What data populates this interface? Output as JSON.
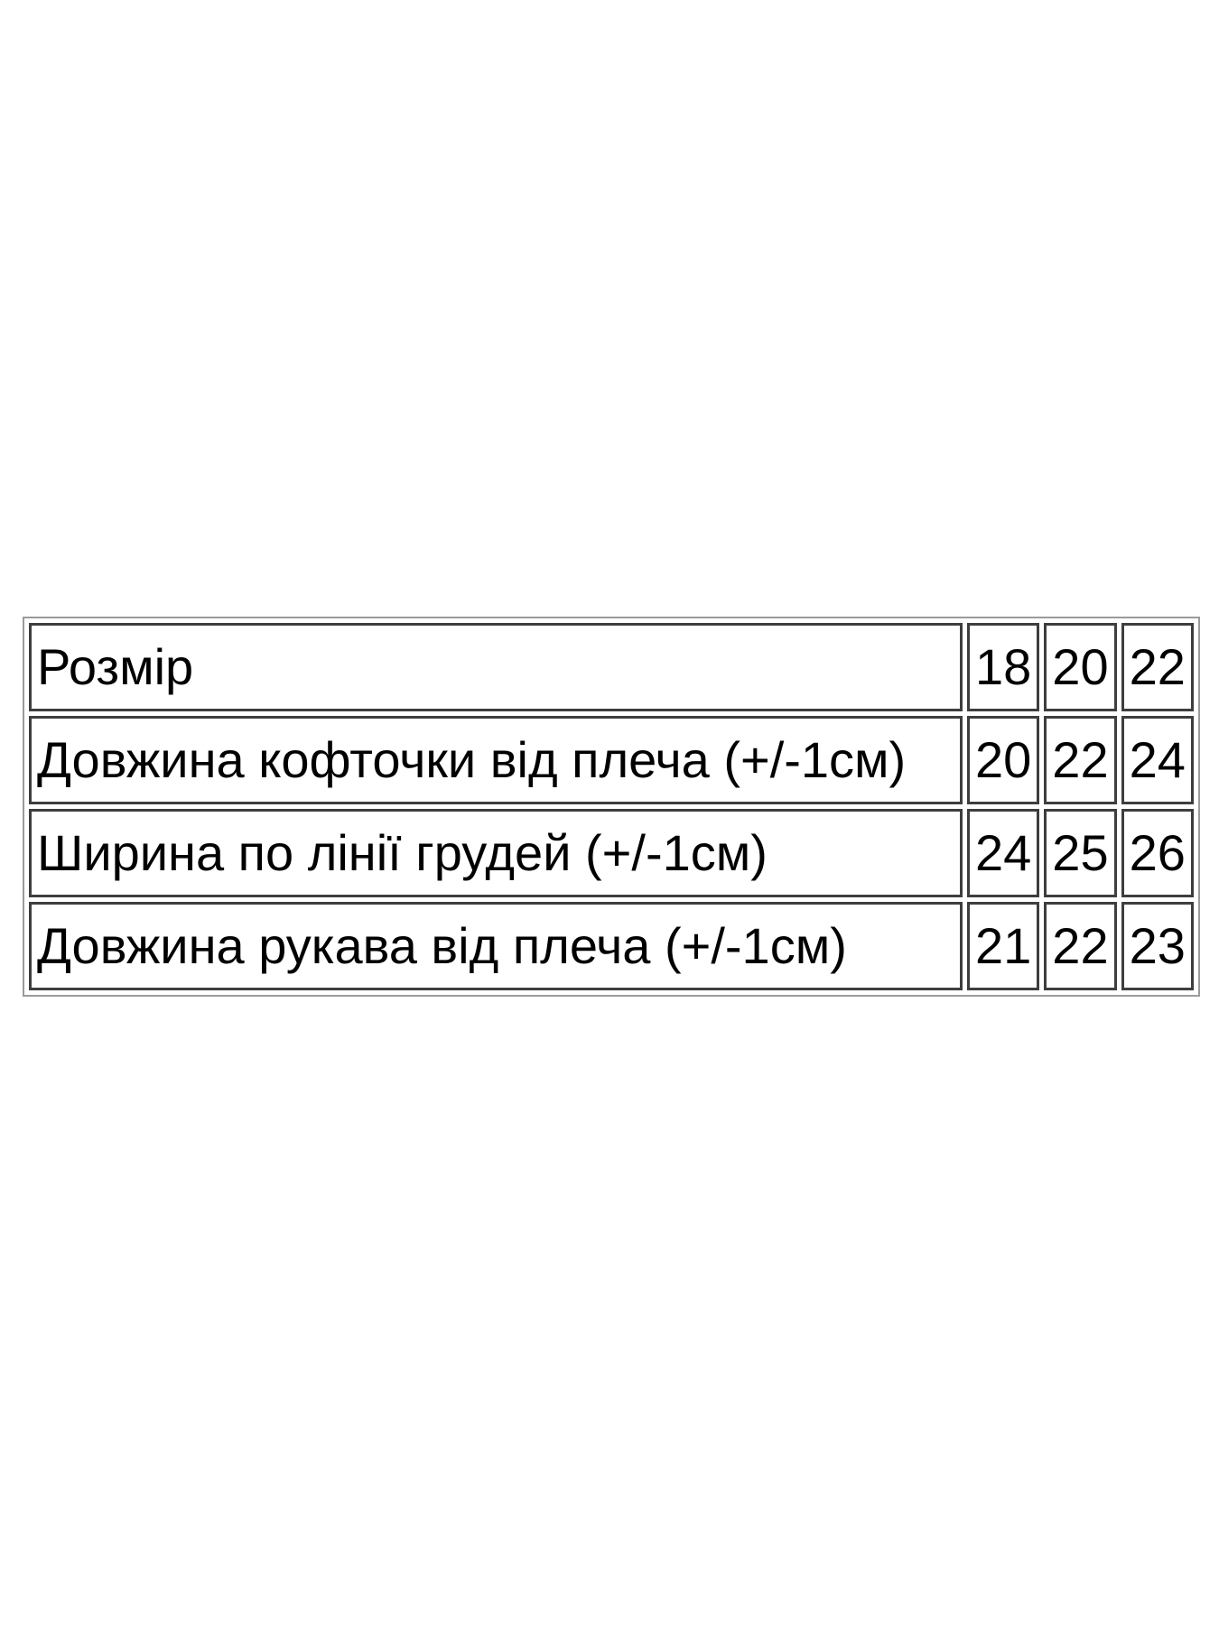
{
  "page": {
    "background": "#ffffff"
  },
  "colors": {
    "text": "#000000",
    "outer_border": "#9b9b9b",
    "cell_border": "#3e3e3e"
  },
  "chart_data": {
    "type": "table",
    "title": "",
    "description": "Size chart table (Ukrainian) for a child's blouse: rows are measurements, columns are sizes 18/20/22",
    "rows": [
      {
        "label": "Розмір",
        "values": [
          "18",
          "20",
          "22"
        ]
      },
      {
        "label": "Довжина кофточки від плеча (+/-1см)",
        "values": [
          "20",
          "22",
          "24"
        ]
      },
      {
        "label": "Ширина по лінії грудей (+/-1см)",
        "values": [
          "24",
          "25",
          "26"
        ]
      },
      {
        "label": "Довжина рукава від плеча (+/-1см)",
        "values": [
          "21",
          "22",
          "23"
        ]
      }
    ]
  }
}
